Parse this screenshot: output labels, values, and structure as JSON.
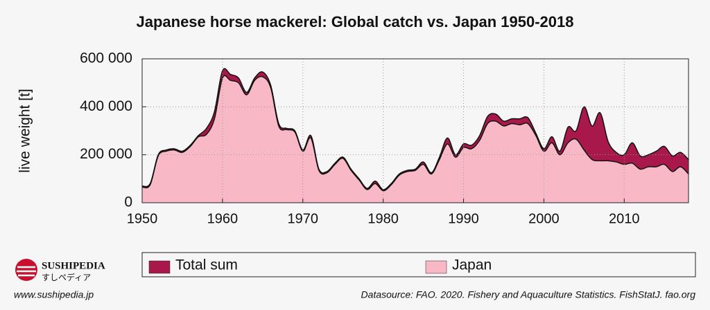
{
  "chart_data": {
    "type": "area",
    "title": "Japanese horse mackerel: Global catch vs. Japan 1950-2018",
    "y_label": "live weight [t]",
    "x": [
      1950,
      1951,
      1952,
      1953,
      1954,
      1955,
      1956,
      1957,
      1958,
      1959,
      1960,
      1961,
      1962,
      1963,
      1964,
      1965,
      1966,
      1967,
      1968,
      1969,
      1970,
      1971,
      1972,
      1973,
      1974,
      1975,
      1976,
      1977,
      1978,
      1979,
      1980,
      1981,
      1982,
      1983,
      1984,
      1985,
      1986,
      1987,
      1988,
      1989,
      1990,
      1991,
      1992,
      1993,
      1994,
      1995,
      1996,
      1997,
      1998,
      1999,
      2000,
      2001,
      2002,
      2003,
      2004,
      2005,
      2006,
      2007,
      2008,
      2009,
      2010,
      2011,
      2012,
      2013,
      2014,
      2015,
      2016,
      2017,
      2018
    ],
    "series": [
      {
        "name": "Total sum",
        "color": "#a8184a",
        "values": [
          70000,
          80000,
          200000,
          220000,
          225000,
          215000,
          240000,
          280000,
          310000,
          380000,
          550000,
          535000,
          520000,
          460000,
          520000,
          545000,
          490000,
          330000,
          310000,
          300000,
          220000,
          280000,
          140000,
          130000,
          165000,
          190000,
          140000,
          100000,
          60000,
          90000,
          55000,
          80000,
          120000,
          135000,
          140000,
          170000,
          125000,
          190000,
          270000,
          200000,
          245000,
          240000,
          280000,
          360000,
          370000,
          340000,
          350000,
          350000,
          355000,
          290000,
          225000,
          275000,
          215000,
          315000,
          300000,
          400000,
          320000,
          375000,
          255000,
          210000,
          200000,
          250000,
          195000,
          200000,
          215000,
          235000,
          195000,
          210000,
          180000
        ]
      },
      {
        "name": "Japan",
        "color": "#f9b8c6",
        "values": [
          65000,
          75000,
          195000,
          215000,
          220000,
          210000,
          235000,
          275000,
          285000,
          350000,
          520000,
          510000,
          500000,
          450000,
          510000,
          525000,
          480000,
          320000,
          305000,
          295000,
          215000,
          270000,
          135000,
          125000,
          160000,
          185000,
          135000,
          95000,
          55000,
          80000,
          50000,
          75000,
          115000,
          130000,
          135000,
          160000,
          120000,
          180000,
          245000,
          190000,
          230000,
          225000,
          260000,
          330000,
          340000,
          320000,
          330000,
          325000,
          330000,
          280000,
          215000,
          250000,
          200000,
          250000,
          265000,
          220000,
          180000,
          175000,
          175000,
          170000,
          160000,
          165000,
          140000,
          150000,
          150000,
          160000,
          130000,
          150000,
          120000
        ]
      }
    ],
    "xlim": [
      1950,
      2018
    ],
    "xticks": [
      1950,
      1960,
      1970,
      1980,
      1990,
      2000,
      2010
    ],
    "ylim": [
      0,
      600000
    ],
    "yticks": [
      0,
      {
        "value": 200000,
        "label": "200 000"
      },
      {
        "value": 400000,
        "label": "400 000"
      },
      {
        "value": 600000,
        "label": "600 000"
      }
    ],
    "grid": true
  },
  "footer": {
    "brand": "SUSHIPEDIA",
    "brand_jp": "すしペディア",
    "website": "www.sushipedia.jp",
    "source": "Datasource: FAO. 2020. Fishery and Aquaculture Statistics. FishStatJ. fao.org"
  }
}
